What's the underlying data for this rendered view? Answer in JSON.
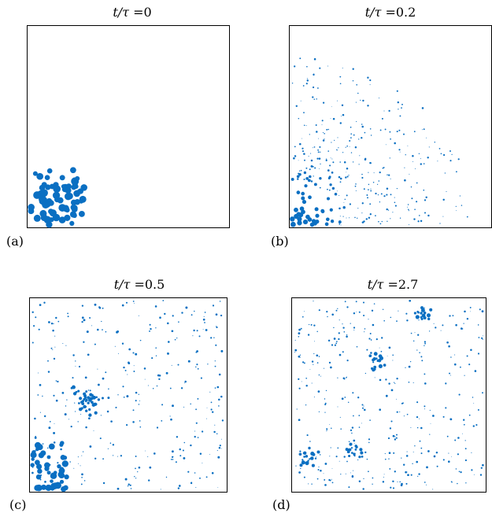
{
  "panels": [
    {
      "id": "a",
      "label": "(a)",
      "title_var": "t/τ",
      "title_eq": "=",
      "time": "0"
    },
    {
      "id": "b",
      "label": "(b)",
      "title_var": "t/τ",
      "title_eq": "=",
      "time": "0.2"
    },
    {
      "id": "c",
      "label": "(c)",
      "title_var": "t/τ",
      "title_eq": "=",
      "time": "0.5"
    },
    {
      "id": "d",
      "label": "(d)",
      "title_var": "t/τ",
      "title_eq": "=",
      "time": "2.7"
    }
  ],
  "colors": {
    "particle": "#0a6fc2",
    "frame": "#000000",
    "background": "#ffffff"
  }
}
